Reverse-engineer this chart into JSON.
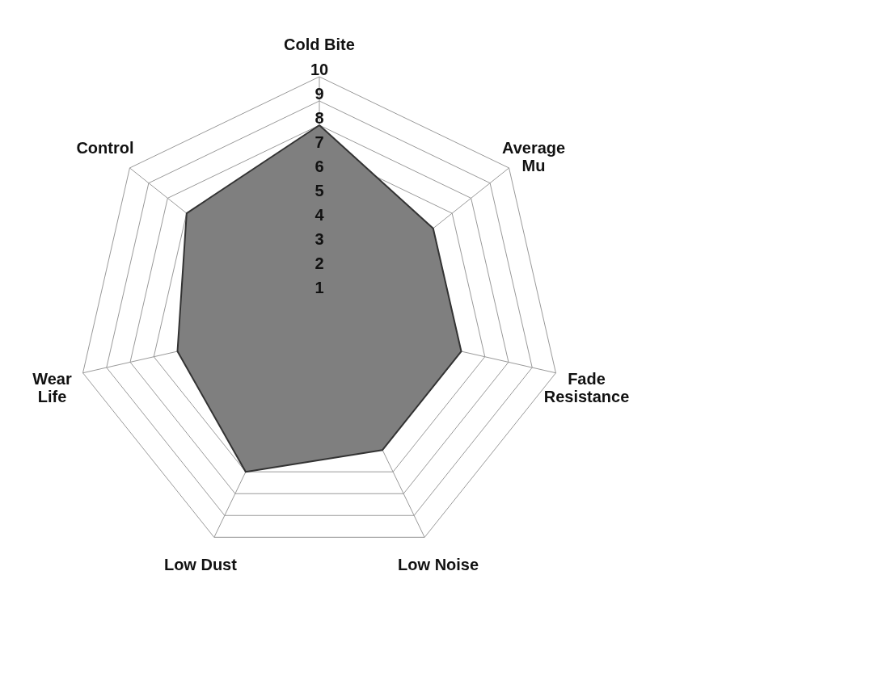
{
  "chart_data": {
    "type": "radar",
    "categories": [
      "Cold Bite",
      "Average\nMu",
      "Fade\nResistance",
      "Low Noise",
      "Low Dust",
      "Wear\nLife",
      "Control"
    ],
    "series": [
      {
        "color": "#7f7f7f",
        "values": [
          8,
          6,
          6,
          6,
          7,
          6,
          7
        ]
      }
    ],
    "ylim": [
      0,
      10
    ],
    "yticks": [
      1,
      2,
      3,
      4,
      5,
      6,
      7,
      8,
      9,
      10
    ],
    "grid": true
  }
}
